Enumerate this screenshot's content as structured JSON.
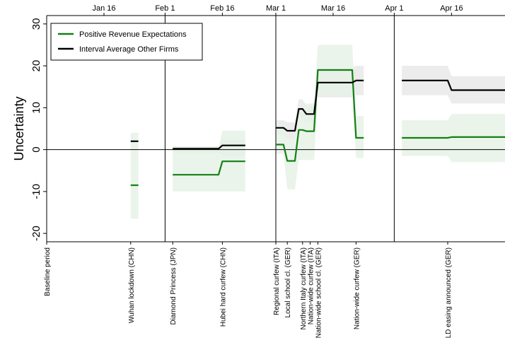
{
  "chart_data": {
    "type": "line",
    "title": "",
    "xlabel": "",
    "ylabel": "Uncertainty",
    "ylim": [
      -22,
      32
    ],
    "xlim": [
      "2020-01-01",
      "2020-04-30"
    ],
    "grid": false,
    "legend_position": "top-left",
    "x_top_ticks": [
      {
        "date": "2020-01-16",
        "label": "Jan 16"
      },
      {
        "date": "2020-02-01",
        "label": "Feb 1"
      },
      {
        "date": "2020-02-16",
        "label": "Feb 16"
      },
      {
        "date": "2020-03-01",
        "label": "Mar 1"
      },
      {
        "date": "2020-03-16",
        "label": "Mar 16"
      },
      {
        "date": "2020-04-01",
        "label": "Apr 1"
      },
      {
        "date": "2020-04-16",
        "label": "Apr 16"
      }
    ],
    "y_ticks": [
      -20,
      -10,
      0,
      10,
      20,
      30
    ],
    "vertical_lines": [
      "2020-02-01",
      "2020-03-01",
      "2020-04-01"
    ],
    "events": [
      {
        "date": "2020-01-01",
        "label": "Baseline period"
      },
      {
        "date": "2020-01-23",
        "label": "Wuhan lockdown (CHN)"
      },
      {
        "date": "2020-02-03",
        "label": "Diamond Princess (JPN)"
      },
      {
        "date": "2020-02-16",
        "label": "Hubei hard curfew (CHN)"
      },
      {
        "date": "2020-03-01",
        "label": "Regional curfew (ITA)"
      },
      {
        "date": "2020-03-04",
        "label": "Local school cl. (GER)"
      },
      {
        "date": "2020-03-08",
        "label": "Northern Italy curfew (ITA)"
      },
      {
        "date": "2020-03-10",
        "label": "Nation-wide curfew (ITA)"
      },
      {
        "date": "2020-03-12",
        "label": "Nation-wide school cl. (GER)"
      },
      {
        "date": "2020-03-22",
        "label": "Nation-wide curfew (GER)"
      },
      {
        "date": "2020-04-15",
        "label": "LD easing announced (GER)"
      }
    ],
    "series": [
      {
        "name": "Positive Revenue Expectations",
        "color": "#138013",
        "band_color": "#e6f2e6",
        "segments": [
          {
            "points": [
              [
                "2020-01-23",
                -8.5
              ],
              [
                "2020-01-25",
                -8.5
              ]
            ],
            "lower": [
              -16.5,
              -16.5
            ],
            "upper": [
              4,
              4
            ]
          },
          {
            "points": [
              [
                "2020-02-03",
                -6
              ],
              [
                "2020-02-15",
                -6
              ],
              [
                "2020-02-16",
                -2.8
              ],
              [
                "2020-02-22",
                -2.8
              ]
            ],
            "lower": [
              -10,
              -10,
              -10,
              -10
            ],
            "upper": [
              0.5,
              0.5,
              4.5,
              4.5
            ]
          },
          {
            "points": [
              [
                "2020-03-01",
                1.2
              ],
              [
                "2020-03-03",
                1.2
              ],
              [
                "2020-03-04",
                -2.7
              ],
              [
                "2020-03-06",
                -2.7
              ],
              [
                "2020-03-07",
                4.7
              ],
              [
                "2020-03-08",
                4.7
              ],
              [
                "2020-03-09",
                4.4
              ],
              [
                "2020-03-11",
                4.4
              ],
              [
                "2020-03-12",
                19
              ],
              [
                "2020-03-21",
                19
              ],
              [
                "2020-03-22",
                2.8
              ],
              [
                "2020-03-24",
                2.8
              ]
            ],
            "lower": [
              -1,
              -1,
              -9.5,
              -9.5,
              -2.5,
              -2.5,
              -2.5,
              -2.5,
              13,
              13,
              -2,
              -2
            ],
            "upper": [
              6,
              6,
              3,
              3,
              10,
              10,
              11,
              11,
              25,
              25,
              8,
              8
            ]
          },
          {
            "points": [
              [
                "2020-04-03",
                2.8
              ],
              [
                "2020-04-15",
                2.8
              ],
              [
                "2020-04-16",
                3
              ],
              [
                "2020-04-30",
                3
              ]
            ],
            "lower": [
              -1.5,
              -1.5,
              -3,
              -3
            ],
            "upper": [
              7,
              7,
              8.5,
              8.5
            ]
          }
        ]
      },
      {
        "name": "Interval Average Other Firms",
        "color": "#000000",
        "band_color": "#ececec",
        "segments": [
          {
            "points": [
              [
                "2020-01-23",
                2
              ],
              [
                "2020-01-25",
                2
              ]
            ],
            "lower": [
              2,
              2
            ],
            "upper": [
              2,
              2
            ]
          },
          {
            "points": [
              [
                "2020-02-03",
                0.2
              ],
              [
                "2020-02-15",
                0.2
              ],
              [
                "2020-02-16",
                1
              ],
              [
                "2020-02-22",
                1
              ]
            ],
            "lower": [
              -0.8,
              -0.8,
              -1.5,
              -1.5
            ],
            "upper": [
              0.8,
              0.8,
              2.5,
              2.5
            ]
          },
          {
            "points": [
              [
                "2020-03-01",
                5.2
              ],
              [
                "2020-03-03",
                5.2
              ],
              [
                "2020-03-04",
                4.5
              ],
              [
                "2020-03-06",
                4.5
              ],
              [
                "2020-03-07",
                9.7
              ],
              [
                "2020-03-08",
                9.7
              ],
              [
                "2020-03-09",
                8.5
              ],
              [
                "2020-03-11",
                8.5
              ],
              [
                "2020-03-12",
                16
              ],
              [
                "2020-03-21",
                16
              ],
              [
                "2020-03-22",
                16.5
              ],
              [
                "2020-03-24",
                16.5
              ]
            ],
            "lower": [
              3.5,
              3.5,
              2.5,
              2.5,
              7.5,
              7.5,
              6.5,
              6.5,
              12.5,
              12.5,
              13,
              13
            ],
            "upper": [
              7,
              7,
              6.5,
              6.5,
              12,
              12,
              10.5,
              10.5,
              19.5,
              19.5,
              20,
              20
            ]
          },
          {
            "points": [
              [
                "2020-04-03",
                16.5
              ],
              [
                "2020-04-15",
                16.5
              ],
              [
                "2020-04-16",
                14.2
              ],
              [
                "2020-04-30",
                14.2
              ]
            ],
            "lower": [
              13,
              13,
              11,
              11
            ],
            "upper": [
              20,
              20,
              17.5,
              17.5
            ]
          }
        ]
      }
    ]
  }
}
